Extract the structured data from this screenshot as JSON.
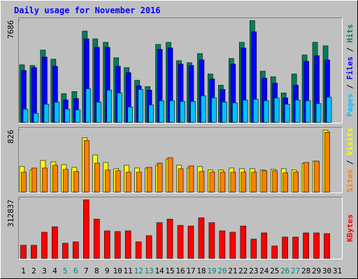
{
  "chart_data": [
    {
      "type": "bar",
      "title": "Daily usage for November 2016",
      "legend_separator": " / ",
      "categories": [
        "1",
        "2",
        "3",
        "4",
        "5",
        "6",
        "7",
        "8",
        "9",
        "10",
        "11",
        "12",
        "13",
        "14",
        "15",
        "16",
        "17",
        "18",
        "19",
        "20",
        "21",
        "22",
        "23",
        "24",
        "25",
        "26",
        "27",
        "28",
        "29",
        "30",
        "31"
      ],
      "series": [
        {
          "name": "Hits",
          "color": "#00805c",
          "values": [
            4347,
            4294,
            5460,
            4771,
            2173,
            2332,
            6891,
            6308,
            6043,
            4877,
            4135,
            3180,
            2703,
            5884,
            6043,
            4665,
            4506,
            5195,
            3658,
            2809,
            4824,
            6043,
            7686,
            3870,
            3446,
            2226,
            3658,
            5089,
            6043,
            5778,
            null
          ]
        },
        {
          "name": "Files",
          "color": "#0000ff",
          "values": [
            3922,
            4134,
            4929,
            4240,
            1696,
            1802,
            6307,
            5671,
            5671,
            4240,
            3763,
            2756,
            2438,
            5512,
            5618,
            4399,
            4293,
            4717,
            3286,
            2491,
            4399,
            5618,
            6837,
            3339,
            2968,
            1855,
            2809,
            4611,
            5035,
            4717,
            null
          ]
        },
        {
          "name": "Pages",
          "color": "#00c0ff",
          "values": [
            1007,
            689,
            1378,
            1537,
            1007,
            954,
            2544,
            1537,
            2438,
            2226,
            1166,
            2491,
            1325,
            1643,
            1643,
            1590,
            1590,
            2014,
            1855,
            1537,
            1484,
            1696,
            1749,
            1643,
            1855,
            1378,
            1696,
            1643,
            1431,
            1908,
            null
          ]
        }
      ],
      "ylim": [
        0,
        7686
      ],
      "yticks": [
        7686
      ]
    },
    {
      "type": "bar",
      "legend_separator": " / ",
      "categories": [
        "1",
        "2",
        "3",
        "4",
        "5",
        "6",
        "7",
        "8",
        "9",
        "10",
        "11",
        "12",
        "13",
        "14",
        "15",
        "16",
        "17",
        "18",
        "19",
        "20",
        "21",
        "22",
        "23",
        "24",
        "25",
        "26",
        "27",
        "28",
        "29",
        "30",
        "31"
      ],
      "series": [
        {
          "name": "Visits",
          "color": "#ffff00",
          "values": [
            340,
            294,
            422,
            404,
            367,
            330,
            725,
            496,
            395,
            312,
            358,
            321,
            321,
            358,
            441,
            358,
            321,
            340,
            294,
            294,
            321,
            312,
            312,
            294,
            303,
            312,
            294,
            386,
            413,
            826,
            null
          ]
        },
        {
          "name": "Sites",
          "color": "#ff8000",
          "values": [
            266,
            321,
            321,
            358,
            303,
            275,
            688,
            386,
            294,
            285,
            266,
            266,
            330,
            386,
            459,
            312,
            349,
            275,
            266,
            266,
            266,
            266,
            266,
            285,
            285,
            257,
            266,
            395,
            413,
            799,
            null
          ]
        }
      ],
      "ylim": [
        0,
        826
      ],
      "yticks": [
        826
      ]
    },
    {
      "type": "bar",
      "categories": [
        "1",
        "2",
        "3",
        "4",
        "5",
        "6",
        "7",
        "8",
        "9",
        "10",
        "11",
        "12",
        "13",
        "14",
        "15",
        "16",
        "17",
        "18",
        "19",
        "20",
        "21",
        "22",
        "23",
        "24",
        "25",
        "26",
        "27",
        "28",
        "29",
        "30",
        "31"
      ],
      "weekend": [
        4,
        5,
        11,
        12,
        18,
        19,
        25,
        26
      ],
      "weekend_color": "#008080",
      "series": [
        {
          "name": "KBytes",
          "color": "#ff0000",
          "values": [
            69924,
            69924,
            139857,
            169300,
            80970,
            88330,
            312837,
            209784,
            147218,
            143538,
            147218,
            88330,
            121454,
            191382,
            209784,
            176661,
            172980,
            217146,
            191382,
            147218,
            139857,
            172980,
            103053,
            136176,
            66247,
            114093,
            114093,
            136176,
            136176,
            132495,
            null
          ]
        }
      ],
      "ylim": [
        0,
        312837
      ],
      "yticks": [
        312837
      ]
    }
  ]
}
